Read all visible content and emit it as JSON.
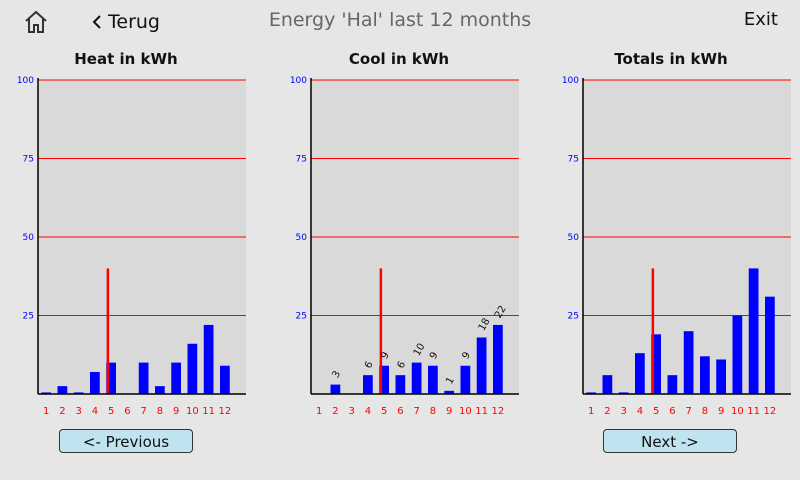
{
  "header": {
    "home_icon": "home-icon",
    "back_label": "Terug",
    "title": "Energy 'Hal' last 12 months",
    "exit_label": "Exit"
  },
  "footer": {
    "previous_label": "<- Previous",
    "next_label": "Next ->"
  },
  "colors": {
    "bar": "#0000ff",
    "marker": "#ff0000",
    "gridline": "#ff0000",
    "ytick": "#0000ff",
    "xtick": "#ff0000",
    "plot_bg": "#d9d9d9"
  },
  "chart_data": [
    {
      "type": "bar",
      "title": "Heat in kWh",
      "categories": [
        "1",
        "2",
        "3",
        "4",
        "5",
        "6",
        "7",
        "8",
        "9",
        "10",
        "11",
        "12"
      ],
      "values": [
        0.5,
        2.5,
        0.5,
        7,
        10,
        0,
        10,
        2.5,
        10,
        16,
        22,
        9
      ],
      "ylim": [
        0,
        100
      ],
      "yticks": [
        25,
        50,
        75,
        100
      ],
      "marker_x": 4.8,
      "marker_value": 40,
      "data_labels": [],
      "grid": true
    },
    {
      "type": "bar",
      "title": "Cool in kWh",
      "categories": [
        "1",
        "2",
        "3",
        "4",
        "5",
        "6",
        "7",
        "8",
        "9",
        "10",
        "11",
        "12"
      ],
      "values": [
        0,
        3,
        0,
        6,
        9,
        6,
        10,
        9,
        1,
        9,
        18,
        22
      ],
      "ylim": [
        0,
        100
      ],
      "yticks": [
        25,
        50,
        75,
        100
      ],
      "marker_x": 4.8,
      "marker_value": 40,
      "data_labels": [
        "",
        "3",
        "",
        "6",
        "9",
        "6",
        "10",
        "9",
        "1",
        "9",
        "18",
        "22"
      ],
      "grid": true
    },
    {
      "type": "bar",
      "title": "Totals in kWh",
      "categories": [
        "1",
        "2",
        "3",
        "4",
        "5",
        "6",
        "7",
        "8",
        "9",
        "10",
        "11",
        "12"
      ],
      "values": [
        0.5,
        6,
        0.5,
        13,
        19,
        6,
        20,
        12,
        11,
        25,
        40,
        31
      ],
      "ylim": [
        0,
        100
      ],
      "yticks": [
        25,
        50,
        75,
        100
      ],
      "marker_x": 4.8,
      "marker_value": 40,
      "data_labels": [],
      "grid": true
    }
  ]
}
